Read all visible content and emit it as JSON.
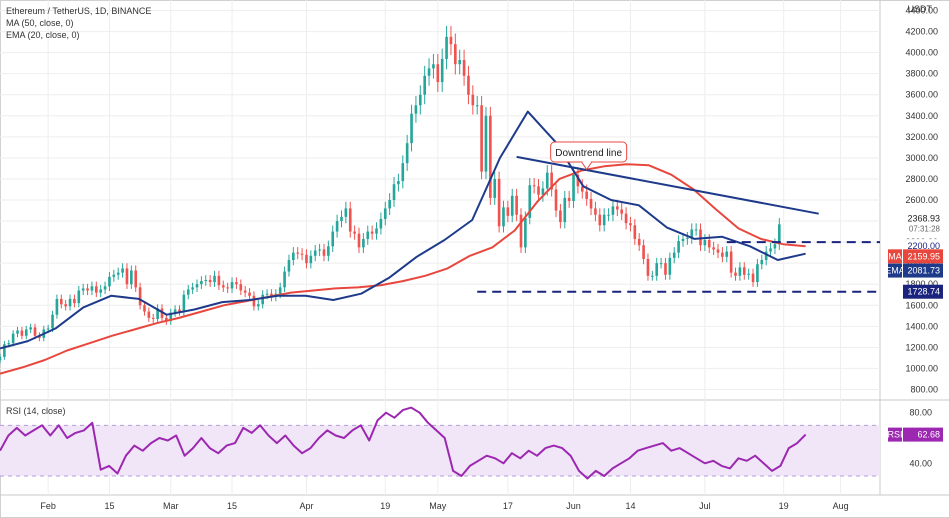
{
  "header": {
    "symbol_line": "Ethereum / TetherUS, 1D, BINANCE",
    "ma_label": "MA (50, close, 0)",
    "ema_label": "EMA (20, close, 0)",
    "rsi_label": "RSI (14, close)",
    "currency": "USDT",
    "countdown": "07:31:28"
  },
  "colors": {
    "up": "#26a69a",
    "down": "#ef5350",
    "ma": "#e8473e",
    "ema": "#1e3a8a",
    "trendline": "#1e3a8a",
    "level_line": "#1a237e",
    "rsi_line": "#9c27b0",
    "rsi_band": "#f0e6f8",
    "grid": "#eeeeee"
  },
  "chart_data": [
    {
      "type": "candlestick",
      "title": "Ethereum / TetherUS, 1D, BINANCE",
      "ylim": [
        700,
        4500
      ],
      "y_ticks": [
        "800.00",
        "1000.00",
        "1200.00",
        "1400.00",
        "1600.00",
        "1800.00",
        "2000.00",
        "2200.00",
        "2400.00",
        "2600.00",
        "2800.00",
        "3000.00",
        "3200.00",
        "3400.00",
        "3600.00",
        "3800.00",
        "4000.00",
        "4200.00",
        "4400.00"
      ],
      "x_ticks": [
        "Feb",
        "15",
        "Mar",
        "15",
        "Apr",
        "19",
        "May",
        "17",
        "Jun",
        "14",
        "Jul",
        "19",
        "Aug"
      ],
      "x_tick_dates": [
        "2021-02-01",
        "2021-02-15",
        "2021-03-01",
        "2021-03-15",
        "2021-04-01",
        "2021-04-19",
        "2021-05-01",
        "2021-05-17",
        "2021-06-01",
        "2021-06-14",
        "2021-07-01",
        "2021-07-19",
        "2021-08-01"
      ],
      "candles_summary": {
        "first_date": "2021-01-21",
        "last_date": "2021-07-24"
      },
      "ohlc_closes": [
        1110,
        1230,
        1240,
        1330,
        1360,
        1310,
        1370,
        1390,
        1310,
        1290,
        1370,
        1380,
        1510,
        1660,
        1610,
        1590,
        1660,
        1620,
        1740,
        1760,
        1740,
        1780,
        1720,
        1750,
        1780,
        1870,
        1890,
        1910,
        1950,
        1800,
        1930,
        1770,
        1600,
        1540,
        1480,
        1470,
        1570,
        1480,
        1450,
        1530,
        1560,
        1540,
        1700,
        1750,
        1770,
        1800,
        1830,
        1840,
        1820,
        1880,
        1790,
        1770,
        1760,
        1820,
        1800,
        1740,
        1720,
        1690,
        1590,
        1610,
        1700,
        1710,
        1680,
        1710,
        1770,
        1920,
        2030,
        2100,
        2090,
        2080,
        2000,
        2070,
        2120,
        2130,
        2070,
        2160,
        2300,
        2400,
        2440,
        2520,
        2300,
        2280,
        2150,
        2230,
        2300,
        2280,
        2330,
        2420,
        2520,
        2600,
        2750,
        2780,
        2950,
        3140,
        3420,
        3500,
        3600,
        3780,
        3850,
        3890,
        3720,
        3940,
        4150,
        4080,
        3890,
        3930,
        3780,
        3600,
        3500,
        3500,
        2870,
        3400,
        2620,
        2800,
        2350,
        2530,
        2450,
        2640,
        2460,
        2150,
        2430,
        2740,
        2730,
        2650,
        2710,
        2860,
        2700,
        2500,
        2390,
        2620,
        2590,
        2840,
        2730,
        2680,
        2610,
        2520,
        2460,
        2360,
        2460,
        2460,
        2540,
        2510,
        2470,
        2380,
        2360,
        2230,
        2170,
        2040,
        1880,
        1880,
        2000,
        2000,
        1890,
        2050,
        2100,
        2210,
        2230,
        2240,
        2320,
        2320,
        2170,
        2220,
        2150,
        2130,
        2100,
        2060,
        2110,
        1910,
        1880,
        1960,
        1890,
        1900,
        1820,
        1990,
        2030,
        2110,
        2140,
        2180,
        2369
      ],
      "horizontal_levels": [
        {
          "value": 2200.0,
          "label": "2200.00"
        },
        {
          "value": 1728.74,
          "label": "1728.74"
        }
      ],
      "trendline": {
        "start": {
          "date": "2021-05-19",
          "price": 3010
        },
        "end": {
          "date": "2021-07-27",
          "price": 2470
        },
        "annotation": "Downtrend line"
      },
      "last_price": {
        "value": 2368.93,
        "label": "2368.93"
      },
      "series": [
        {
          "name": "MA",
          "value_label": "2159.95",
          "values_sampled": [
            950,
            1010,
            1080,
            1170,
            1240,
            1310,
            1370,
            1430,
            1480,
            1540,
            1600,
            1640,
            1680,
            1720,
            1740,
            1760,
            1770,
            1790,
            1830,
            1880,
            1950,
            2070,
            2150,
            2310,
            2580,
            2800,
            2880,
            2920,
            2940,
            2930,
            2840,
            2700,
            2510,
            2330,
            2230,
            2180,
            2160
          ]
        },
        {
          "name": "EMA",
          "value_label": "2081.73",
          "values_sampled": [
            1190,
            1260,
            1380,
            1580,
            1690,
            1660,
            1510,
            1560,
            1630,
            1650,
            1690,
            1690,
            1650,
            1710,
            1860,
            2060,
            2220,
            2410,
            3000,
            3440,
            3150,
            2730,
            2600,
            2550,
            2340,
            2230,
            2250,
            2160,
            2030,
            2090
          ]
        }
      ]
    },
    {
      "type": "line",
      "title": "RSI (14, close)",
      "ylim": [
        15,
        90
      ],
      "y_ticks": [
        "40.00",
        "80.00"
      ],
      "series": [
        {
          "name": "RSI",
          "value_label": "62.68",
          "values_sampled": [
            50,
            62,
            68,
            62,
            66,
            70,
            62,
            70,
            60,
            64,
            66,
            72,
            35,
            38,
            32,
            46,
            54,
            50,
            56,
            60,
            58,
            62,
            46,
            52,
            60,
            52,
            48,
            54,
            56,
            68,
            64,
            70,
            62,
            56,
            62,
            54,
            48,
            52,
            60,
            66,
            62,
            60,
            66,
            70,
            58,
            74,
            80,
            76,
            82,
            84,
            80,
            72,
            66,
            60,
            34,
            30,
            38,
            42,
            46,
            44,
            40,
            48,
            44,
            50,
            46,
            52,
            54,
            52,
            46,
            34,
            28,
            34,
            30,
            36,
            40,
            44,
            50,
            52,
            54,
            56,
            50,
            52,
            48,
            44,
            40,
            42,
            38,
            36,
            44,
            42,
            46,
            40,
            34,
            38,
            52,
            56,
            62.68
          ]
        }
      ]
    }
  ]
}
